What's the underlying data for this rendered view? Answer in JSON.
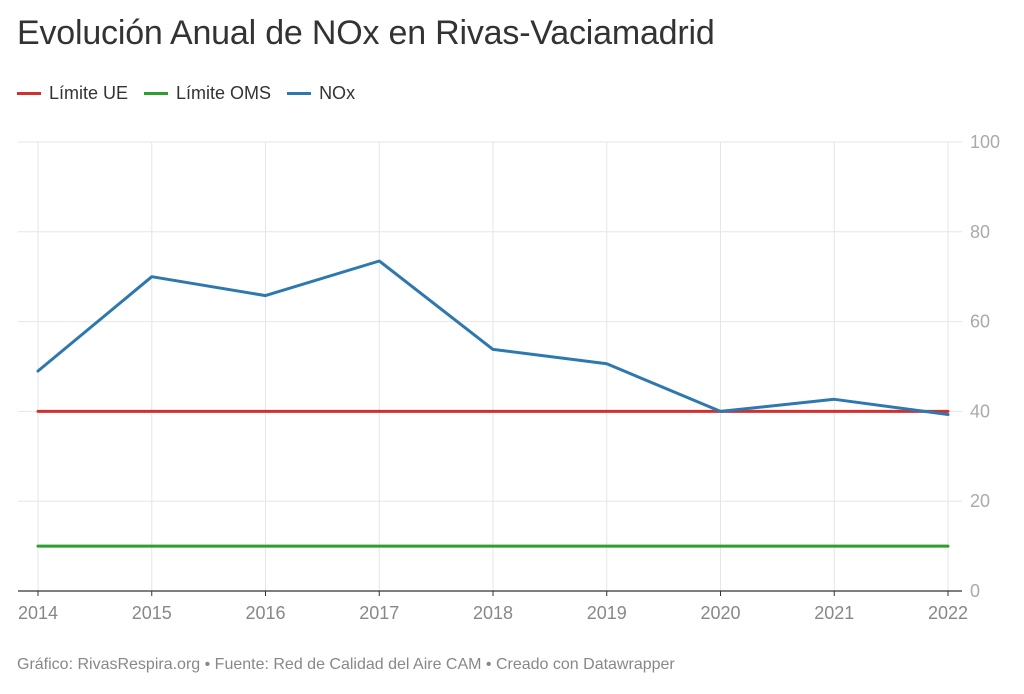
{
  "chart_data": {
    "type": "line",
    "title": "Evolución Anual de NOx en Rivas-Vaciamadrid",
    "x": [
      "2014",
      "2015",
      "2016",
      "2017",
      "2018",
      "2019",
      "2020",
      "2021",
      "2022"
    ],
    "series": [
      {
        "name": "Límite UE",
        "color": "#d32f2f",
        "values": [
          40,
          40,
          40,
          40,
          40,
          40,
          40,
          40,
          40
        ]
      },
      {
        "name": "Límite OMS",
        "color": "#2e9e2e",
        "values": [
          10,
          10,
          10,
          10,
          10,
          10,
          10,
          10,
          10
        ]
      },
      {
        "name": "NOx",
        "color": "#2e78b0",
        "values": [
          49,
          70,
          65.8,
          73.5,
          53.8,
          50.6,
          40,
          42.7,
          39.3
        ]
      }
    ],
    "ylim": [
      0,
      100
    ],
    "yticks": [
      0,
      20,
      40,
      60,
      80,
      100
    ],
    "grid": true,
    "y_axis_side": "right",
    "legend_position": "top-left"
  },
  "footer": "Gráfico: RivasRespira.org • Fuente: Red de Calidad del Aire CAM • Creado con Datawrapper"
}
